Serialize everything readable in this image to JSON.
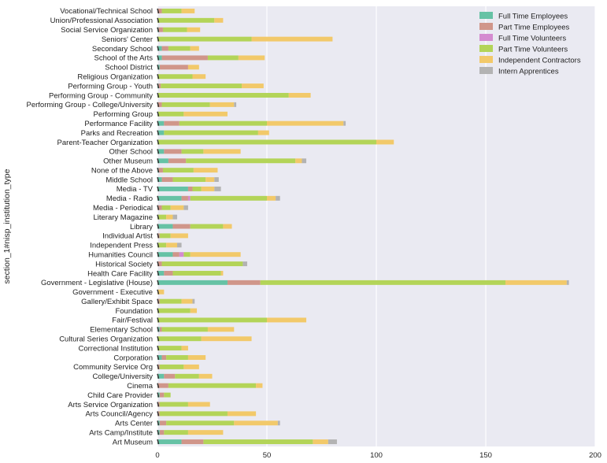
{
  "chart_data": {
    "type": "bar",
    "orientation": "horizontal",
    "stacked": true,
    "ylabel": "section_1#nisp_institution_type",
    "xlabel": "",
    "xlim": [
      0,
      200
    ],
    "xticks": [
      0,
      50,
      100,
      150,
      200
    ],
    "grid": true,
    "legend_position": "top-right",
    "categories": [
      "Vocational/Technical School",
      "Union/Professional Association",
      "Social Service Organization",
      "Seniors' Center",
      "Secondary School",
      "School of the Arts",
      "School District",
      "Religious Organization",
      "Performing Group - Youth",
      "Performing Group - Community",
      "Performing Group - College/University",
      "Performing Group",
      "Performance Facility",
      "Parks and Recreation",
      "Parent-Teacher Organization",
      "Other School",
      "Other Museum",
      "None of the Above",
      "Middle School",
      "Media - TV",
      "Media - Radio",
      "Media - Periodical",
      "Literary Magazine",
      "Library",
      "Individual Artist",
      "Independent Press",
      "Humanities Council",
      "Historical Society",
      "Health Care Facility",
      "Government - Legislative (House)",
      "Government - Executive",
      "Gallery/Exhibit Space",
      "Foundation",
      "Fair/Festival",
      "Elementary School",
      "Cultural Series Organization",
      "Correctional Institution",
      "Corporation",
      "Community Service Org",
      "College/University",
      "Cinema",
      "Child Care Provider",
      "Arts Service Organization",
      "Arts Council/Agency",
      "Arts Center",
      "Arts Camp/Institute",
      "Art Museum"
    ],
    "series": [
      {
        "name": "Full Time Employees",
        "color": "#66c2a5",
        "values": [
          0,
          0,
          0.5,
          0,
          2,
          2,
          1,
          0,
          0.5,
          0,
          0,
          0,
          3,
          3,
          0,
          3,
          5,
          0.5,
          2,
          14,
          11,
          0,
          0,
          7,
          0,
          0,
          7,
          0,
          3,
          32,
          0,
          0,
          0,
          0,
          1,
          0,
          0,
          2,
          0,
          3,
          0,
          1,
          0,
          0,
          1,
          1,
          11
        ]
      },
      {
        "name": "Part Time Employees",
        "color": "#d0968a",
        "values": [
          2,
          0,
          2,
          0,
          3,
          21,
          13,
          0,
          1,
          0,
          2,
          0,
          7,
          0,
          0,
          8,
          8,
          2,
          5,
          2,
          3,
          2,
          0,
          8,
          1,
          0,
          3,
          2,
          4,
          15,
          0,
          1,
          0,
          0,
          1,
          0,
          0,
          2,
          1,
          5,
          5,
          2,
          1,
          1,
          3,
          2,
          10
        ]
      },
      {
        "name": "Full Time Volunteers",
        "color": "#d48bd0",
        "values": [
          0,
          0,
          0,
          0,
          0,
          0,
          0,
          0,
          0,
          0,
          0,
          0,
          0,
          0,
          0,
          0,
          0,
          0,
          0,
          0,
          1,
          0,
          0,
          0,
          0,
          0,
          2,
          0,
          0,
          0,
          0,
          0,
          0,
          0,
          0,
          0,
          0,
          0,
          0,
          0,
          0,
          0,
          0,
          0,
          0,
          0,
          0
        ]
      },
      {
        "name": "Part Time Volunteers",
        "color": "#b3d458",
        "values": [
          9,
          26,
          11,
          43,
          10,
          14,
          0,
          16,
          37,
          60,
          22,
          12,
          40,
          43,
          100,
          10,
          50,
          14,
          15,
          4,
          35,
          4,
          4,
          15,
          5,
          4,
          3,
          37,
          22,
          112,
          0,
          10,
          15,
          50,
          21,
          20,
          11,
          10,
          11,
          11,
          40,
          3,
          13,
          31,
          31,
          11,
          50
        ]
      },
      {
        "name": "Independent Contractors",
        "color": "#f2c96a",
        "values": [
          6,
          4,
          6,
          37,
          4,
          12,
          5,
          6,
          10,
          10,
          11,
          20,
          35,
          5,
          8,
          17,
          3,
          11,
          4,
          6,
          4,
          6,
          3,
          4,
          8,
          5,
          23,
          0,
          1,
          28,
          3,
          5,
          3,
          18,
          12,
          23,
          3,
          8,
          7,
          6,
          3,
          0,
          10,
          13,
          20,
          16,
          7
        ]
      },
      {
        "name": "Intern Apprentices",
        "color": "#b3b3b3",
        "values": [
          0,
          0,
          0,
          0,
          0,
          0,
          0,
          0,
          0,
          0,
          1,
          0,
          1,
          0,
          0,
          0,
          2,
          0,
          2,
          3,
          2,
          2,
          2,
          0,
          0,
          2,
          0,
          2,
          0,
          1,
          0,
          1,
          0,
          0,
          0,
          0,
          0,
          0,
          0,
          0,
          0,
          0,
          0,
          0,
          1,
          0,
          4
        ]
      }
    ]
  }
}
